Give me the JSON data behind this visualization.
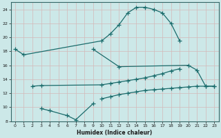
{
  "title": "",
  "xlabel": "Humidex (Indice chaleur)",
  "bg_color": "#cce8e8",
  "grid_color": "#aacccc",
  "line_color": "#1a6b6b",
  "xlim": [
    -0.5,
    23.5
  ],
  "ylim": [
    8,
    25
  ],
  "xticks": [
    0,
    1,
    2,
    3,
    4,
    5,
    6,
    7,
    8,
    9,
    10,
    11,
    12,
    13,
    14,
    15,
    16,
    17,
    18,
    19,
    20,
    21,
    22,
    23
  ],
  "yticks": [
    8,
    10,
    12,
    14,
    16,
    18,
    20,
    22,
    24
  ],
  "lines": [
    {
      "x": [
        0,
        1,
        10,
        11,
        12,
        13,
        14,
        15,
        16,
        17,
        18,
        19
      ],
      "y": [
        18.3,
        17.5,
        19.5,
        20.5,
        21.8,
        23.5,
        24.3,
        24.3,
        24.0,
        23.5,
        22.0,
        19.5
      ]
    },
    {
      "x": [
        2,
        3,
        10,
        11,
        12,
        13,
        14,
        15,
        16,
        17,
        18,
        19
      ],
      "y": [
        13.0,
        13.1,
        13.2,
        13.4,
        13.6,
        13.8,
        14.0,
        14.2,
        14.5,
        14.8,
        15.2,
        15.5
      ]
    },
    {
      "comment": "line from 9,18.3 to 12,15.8 then to 20,16.0 then 21,15.3 22,13 23,13",
      "x": [
        9,
        12,
        20,
        21,
        22,
        23
      ],
      "y": [
        18.3,
        15.8,
        16.0,
        15.3,
        13.0,
        13.0
      ]
    },
    {
      "comment": "bottom curve: 3,9.8 4,9.5 6,8.8 7,8.2 then up to 9,10.5",
      "x": [
        3,
        4,
        6,
        7,
        9
      ],
      "y": [
        9.8,
        9.5,
        8.8,
        8.2,
        10.5
      ]
    },
    {
      "x": [
        10,
        11,
        12,
        13,
        14,
        15,
        16,
        17,
        18,
        19,
        20,
        21,
        22,
        23
      ],
      "y": [
        11.2,
        11.5,
        11.8,
        12.0,
        12.2,
        12.4,
        12.5,
        12.6,
        12.7,
        12.8,
        12.9,
        13.0,
        13.0,
        13.0
      ]
    }
  ]
}
